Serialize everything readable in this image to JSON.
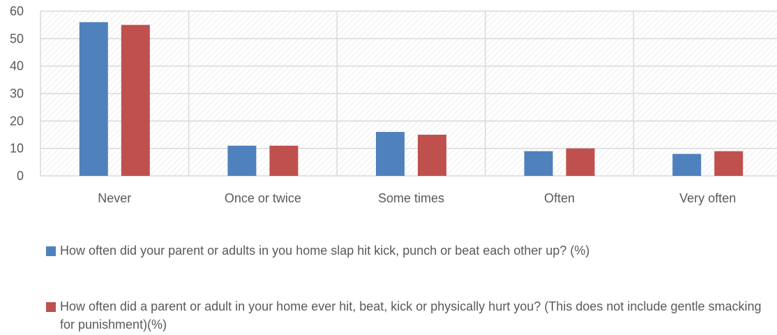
{
  "chart_data": {
    "type": "bar",
    "categories": [
      "Never",
      "Once or twice",
      "Some times",
      "Often",
      "Very often"
    ],
    "series": [
      {
        "name": "How often did your parent or adults in you home slap hit kick, punch or beat each other up? (%)",
        "values": [
          56,
          11,
          16,
          9,
          8
        ],
        "color": "#4f81bd"
      },
      {
        "name": "How often did a parent or adult in your home ever hit, beat, kick or physically hurt you? (This does not include gentle smacking for punishment)(%)",
        "values": [
          55,
          11,
          15,
          10,
          9
        ],
        "color": "#c0504d"
      }
    ],
    "yticks": [
      0,
      10,
      20,
      30,
      40,
      50,
      60
    ],
    "ylim": [
      0,
      60
    ],
    "grid": true,
    "legend_position": "bottom",
    "plot_background": "hatched"
  }
}
